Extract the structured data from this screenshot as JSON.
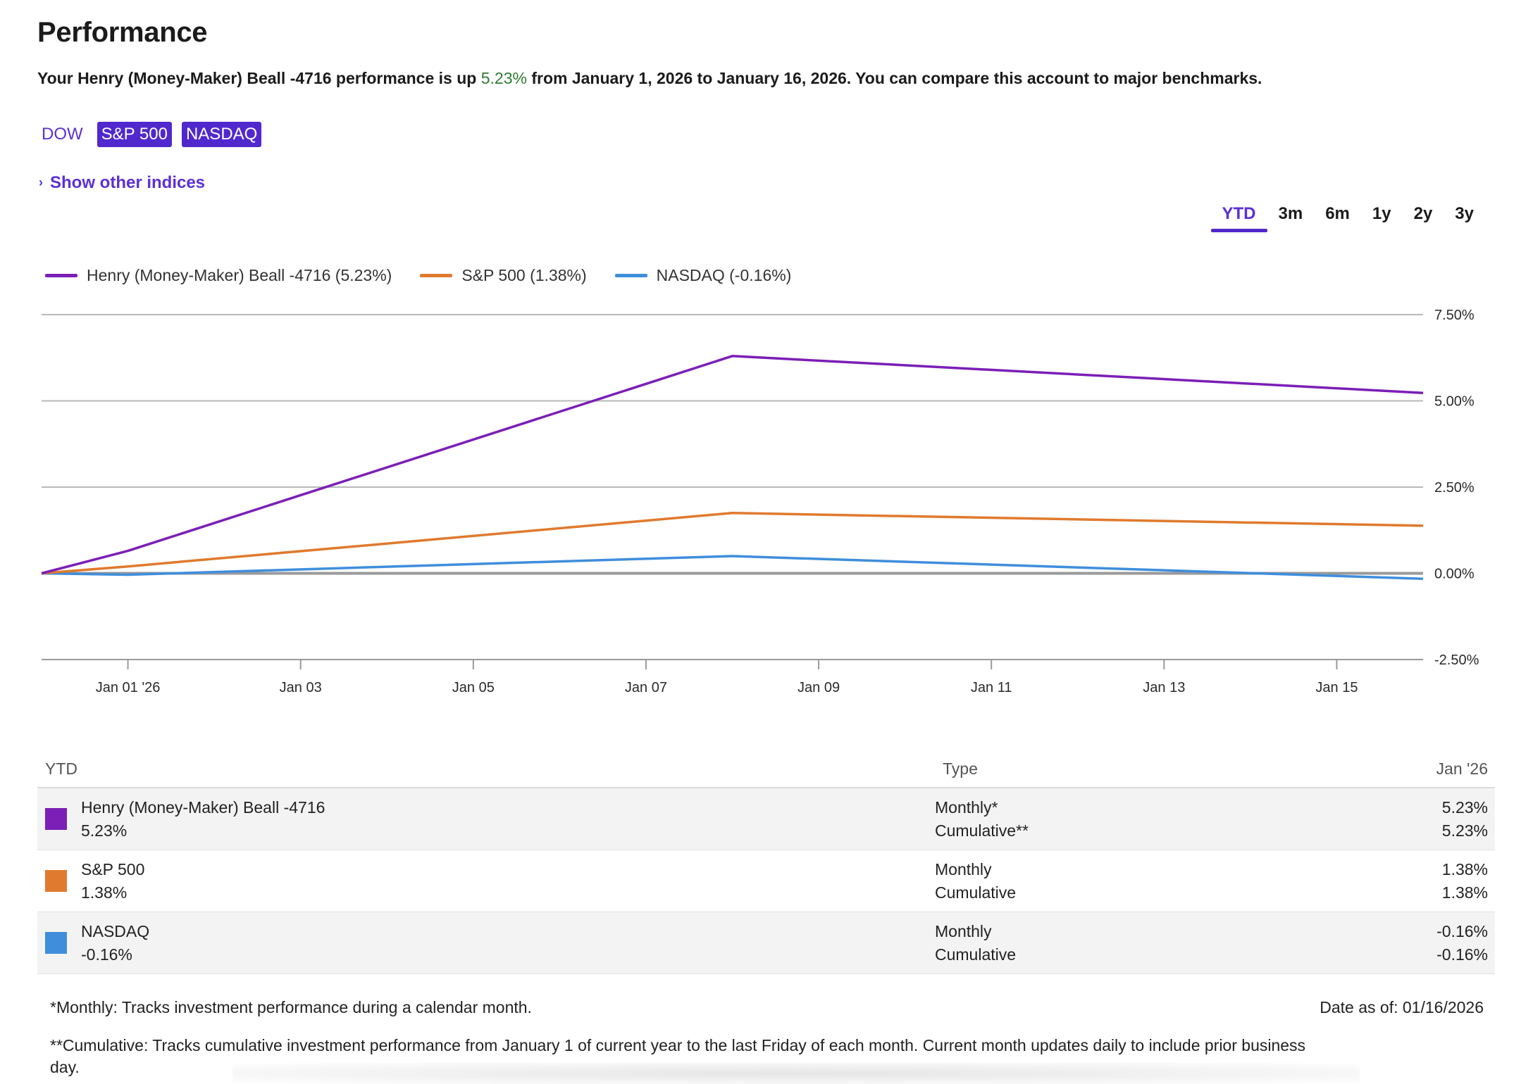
{
  "header": {
    "title": "Performance",
    "summary_prefix": "Your Henry (Money-Maker) Beall -4716 performance is up ",
    "summary_value": "5.23%",
    "summary_suffix": " from January 1, 2026 to January 16, 2026. You can compare this account to major benchmarks."
  },
  "benchmarks": [
    {
      "label": "DOW",
      "selected": false
    },
    {
      "label": "S&P 500",
      "selected": true
    },
    {
      "label": "NASDAQ",
      "selected": true
    }
  ],
  "show_other_indices": "Show other indices",
  "time_ranges": [
    "YTD",
    "3m",
    "6m",
    "1y",
    "2y",
    "3y"
  ],
  "active_range": "YTD",
  "legend": [
    {
      "label": "Henry (Money-Maker) Beall -4716 (5.23%)",
      "color": "#7b1fb6"
    },
    {
      "label": "S&P 500 (1.38%)",
      "color": "#e07a2e"
    },
    {
      "label": "NASDAQ (-0.16%)",
      "color": "#3f8edc"
    }
  ],
  "chart_data": {
    "type": "line",
    "x_ticks": [
      "Jan 01 '26",
      "Jan 03",
      "Jan 05",
      "Jan 07",
      "Jan 09",
      "Jan 11",
      "Jan 13",
      "Jan 15"
    ],
    "y_ticks": [
      "7.50%",
      "5.00%",
      "2.50%",
      "0.00%",
      "-2.50%"
    ],
    "ylim": [
      -2.5,
      7.5
    ],
    "xlim": [
      "2025-12-31",
      "2026-01-16"
    ],
    "series": [
      {
        "name": "Henry (Money-Maker) Beall -4716",
        "color": "#7b1fb6",
        "x": [
          "2025-12-31",
          "2026-01-01",
          "2026-01-08",
          "2026-01-16"
        ],
        "y": [
          0.0,
          0.65,
          6.3,
          5.23
        ]
      },
      {
        "name": "S&P 500",
        "color": "#e07a2e",
        "x": [
          "2025-12-31",
          "2026-01-01",
          "2026-01-08",
          "2026-01-16"
        ],
        "y": [
          0.0,
          0.2,
          1.75,
          1.38
        ]
      },
      {
        "name": "NASDAQ",
        "color": "#3f8edc",
        "x": [
          "2025-12-31",
          "2026-01-01",
          "2026-01-08",
          "2026-01-16"
        ],
        "y": [
          0.0,
          -0.04,
          0.5,
          -0.16
        ]
      },
      {
        "name": "DOW",
        "color": "#9a9a9a",
        "x": [
          "2025-12-31",
          "2026-01-08",
          "2026-01-16"
        ],
        "y": [
          0.0,
          0.0,
          0.0
        ]
      }
    ]
  },
  "table": {
    "col_name": "YTD",
    "col_type": "Type",
    "col_period": "Jan '26",
    "rows": [
      {
        "name": "Henry (Money-Maker) Beall -4716",
        "value": "5.23%",
        "color": "#7b1fb6",
        "type1": "Monthly*",
        "type2": "Cumulative**",
        "v1": "5.23%",
        "v2": "5.23%"
      },
      {
        "name": "S&P 500",
        "value": "1.38%",
        "color": "#e07a2e",
        "type1": "Monthly",
        "type2": "Cumulative",
        "v1": "1.38%",
        "v2": "1.38%"
      },
      {
        "name": "NASDAQ",
        "value": "-0.16%",
        "color": "#3f8edc",
        "type1": "Monthly",
        "type2": "Cumulative",
        "v1": "-0.16%",
        "v2": "-0.16%"
      }
    ]
  },
  "footnotes": {
    "monthly": "*Monthly: Tracks investment performance during a calendar month.",
    "as_of": "Date as of: 01/16/2026",
    "cumulative": "**Cumulative: Tracks cumulative investment performance from January 1 of current year to the last Friday of each month. Current month updates daily to include prior business day."
  }
}
